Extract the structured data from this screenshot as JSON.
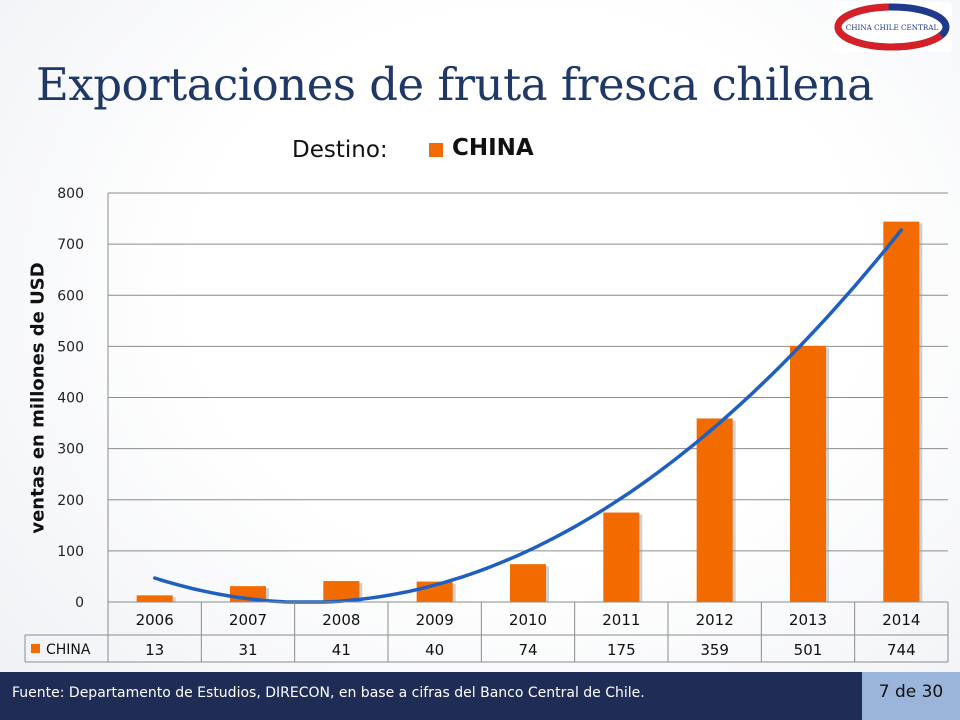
{
  "slide": {
    "title": "Exportaciones de fruta fresca chilena",
    "logo_text": "CHINA CHILE CENTRAL",
    "footer": "Fuente: Departamento de Estudios, DIRECON, en base a cifras del Banco  Central de Chile.",
    "page": "7 de 30"
  },
  "legend": {
    "label": "Destino:",
    "series_name": "CHINA"
  },
  "colors": {
    "bar": "#f26b00",
    "trend": "#1f5fbf",
    "title": "#1f3866",
    "footer_bg": "#1f2d56",
    "page_bg": "#9bb4d9"
  },
  "chart_data": {
    "type": "bar",
    "title": "",
    "xlabel": "",
    "ylabel": "ventas en millones de USD",
    "ylim": [
      0,
      800
    ],
    "yticks": [
      0,
      100,
      200,
      300,
      400,
      500,
      600,
      700,
      800
    ],
    "grid": true,
    "categories": [
      "2006",
      "2007",
      "2008",
      "2009",
      "2010",
      "2011",
      "2012",
      "2013",
      "2014"
    ],
    "series": [
      {
        "name": "CHINA",
        "values": [
          13,
          31,
          41,
          40,
          74,
          175,
          359,
          501,
          744
        ]
      }
    ],
    "trendline": {
      "type": "polynomial",
      "start": 45,
      "end": 728
    },
    "data_table": true
  }
}
